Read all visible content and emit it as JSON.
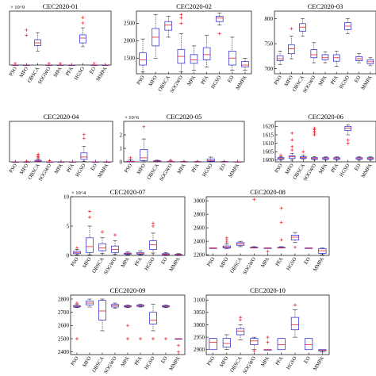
{
  "chart_data": [
    {
      "type": "box",
      "title": "CEC2020-01",
      "categories": [
        "PSO",
        "MFO",
        "OBSCA",
        "SOGWO",
        "MPA",
        "PFA",
        "HGSO",
        "EO",
        "MMPA"
      ],
      "y_multiplier": "× 10^9",
      "ylim": [
        0,
        10
      ],
      "yticks": [],
      "boxes": [
        {
          "q1": 0,
          "med": 0,
          "q3": 0,
          "lo": 0,
          "hi": 0,
          "outliers": [
            0.3
          ]
        },
        {
          "q1": 0,
          "med": 0,
          "q3": 0,
          "lo": 0,
          "hi": 0,
          "outliers": [
            6.5,
            5.5
          ]
        },
        {
          "q1": 3.6,
          "med": 4.1,
          "q3": 4.7,
          "lo": 2.6,
          "hi": 6.0,
          "outliers": []
        },
        {
          "q1": 0,
          "med": 0,
          "q3": 0,
          "lo": 0,
          "hi": 0,
          "outliers": [
            0.3
          ]
        },
        {
          "q1": 0,
          "med": 0,
          "q3": 0,
          "lo": 0,
          "hi": 0,
          "outliers": [
            0.3
          ]
        },
        {
          "q1": 0,
          "med": 0,
          "q3": 0,
          "lo": 0,
          "hi": 0,
          "outliers": []
        },
        {
          "q1": 4.1,
          "med": 5.0,
          "q3": 5.6,
          "lo": 3.4,
          "hi": 6.9,
          "outliers": [
            7.8,
            8.8
          ]
        },
        {
          "q1": 0,
          "med": 0,
          "q3": 0,
          "lo": 0,
          "hi": 0,
          "outliers": [
            0.3
          ]
        },
        {
          "q1": 0,
          "med": 0,
          "q3": 0,
          "lo": 0,
          "hi": 0,
          "outliers": []
        }
      ]
    },
    {
      "type": "box",
      "title": "CEC2020-02",
      "categories": [
        "PSO",
        "MFO",
        "OBSCA",
        "SOGWO",
        "MPA",
        "PFA",
        "HGSO",
        "EO",
        "MMPA"
      ],
      "y_multiplier": "",
      "ylim": [
        1050,
        2850
      ],
      "yticks": [
        1500,
        2000,
        2500
      ],
      "boxes": [
        {
          "q1": 1300,
          "med": 1450,
          "q3": 1650,
          "lo": 1100,
          "hi": 2050,
          "outliers": []
        },
        {
          "q1": 1850,
          "med": 2100,
          "q3": 2350,
          "lo": 1500,
          "hi": 2750,
          "outliers": []
        },
        {
          "q1": 2300,
          "med": 2450,
          "q3": 2550,
          "lo": 2100,
          "hi": 2700,
          "outliers": []
        },
        {
          "q1": 1350,
          "med": 1550,
          "q3": 1750,
          "lo": 1100,
          "hi": 2200,
          "outliers": [
            2500,
            2650,
            2750
          ]
        },
        {
          "q1": 1350,
          "med": 1450,
          "q3": 1600,
          "lo": 1150,
          "hi": 1850,
          "outliers": []
        },
        {
          "q1": 1450,
          "med": 1600,
          "q3": 1800,
          "lo": 1250,
          "hi": 2150,
          "outliers": []
        },
        {
          "q1": 2550,
          "med": 2650,
          "q3": 2700,
          "lo": 2450,
          "hi": 2800,
          "outliers": [
            2200
          ]
        },
        {
          "q1": 1300,
          "med": 1500,
          "q3": 1700,
          "lo": 1150,
          "hi": 2100,
          "outliers": []
        },
        {
          "q1": 1250,
          "med": 1300,
          "q3": 1400,
          "lo": 1150,
          "hi": 1500,
          "outliers": []
        }
      ]
    },
    {
      "type": "box",
      "title": "CEC2020-03",
      "categories": [
        "PSO",
        "MFO",
        "OBSCA",
        "SOGWO",
        "MPA",
        "PFA",
        "HGSO",
        "EO",
        "MMPA"
      ],
      "y_multiplier": "",
      "ylim": [
        690,
        815
      ],
      "yticks": [
        700,
        750,
        800
      ],
      "boxes": [
        {
          "q1": 716,
          "med": 720,
          "q3": 726,
          "lo": 708,
          "hi": 735,
          "outliers": []
        },
        {
          "q1": 730,
          "med": 740,
          "q3": 748,
          "lo": 720,
          "hi": 765,
          "outliers": [
            780
          ]
        },
        {
          "q1": 775,
          "med": 783,
          "q3": 790,
          "lo": 765,
          "hi": 800,
          "outliers": []
        },
        {
          "q1": 722,
          "med": 728,
          "q3": 738,
          "lo": 712,
          "hi": 752,
          "outliers": []
        },
        {
          "q1": 718,
          "med": 722,
          "q3": 728,
          "lo": 712,
          "hi": 734,
          "outliers": []
        },
        {
          "q1": 715,
          "med": 722,
          "q3": 728,
          "lo": 705,
          "hi": 735,
          "outliers": []
        },
        {
          "q1": 778,
          "med": 785,
          "q3": 792,
          "lo": 770,
          "hi": 800,
          "outliers": []
        },
        {
          "q1": 716,
          "med": 720,
          "q3": 724,
          "lo": 712,
          "hi": 730,
          "outliers": []
        },
        {
          "q1": 710,
          "med": 714,
          "q3": 718,
          "lo": 706,
          "hi": 722,
          "outliers": []
        }
      ]
    },
    {
      "type": "box",
      "title": "CEC2020-04",
      "categories": [
        "PSO",
        "MFO",
        "OBSCA",
        "SOGWO",
        "MPA",
        "PFA",
        "HGSO",
        "EO",
        "MMPA"
      ],
      "y_multiplier": "",
      "ylim": [
        0,
        10
      ],
      "yticks": [],
      "boxes": [
        {
          "q1": 0,
          "med": 0,
          "q3": 0,
          "lo": 0,
          "hi": 0,
          "outliers": []
        },
        {
          "q1": 0,
          "med": 0,
          "q3": 0,
          "lo": 0,
          "hi": 0,
          "outliers": [
            0.2
          ]
        },
        {
          "q1": 0.1,
          "med": 0.2,
          "q3": 0.4,
          "lo": 0,
          "hi": 0.7,
          "outliers": [
            1.0,
            1.3,
            1.6,
            1.9
          ]
        },
        {
          "q1": 0,
          "med": 0,
          "q3": 0,
          "lo": 0,
          "hi": 0,
          "outliers": [
            0.3
          ]
        },
        {
          "q1": 0,
          "med": 0,
          "q3": 0,
          "lo": 0,
          "hi": 0,
          "outliers": []
        },
        {
          "q1": 0,
          "med": 0,
          "q3": 0,
          "lo": 0,
          "hi": 0,
          "outliers": []
        },
        {
          "q1": 0.6,
          "med": 1.2,
          "q3": 2.2,
          "lo": 0.1,
          "hi": 3.8,
          "outliers": [
            5.8,
            6.8
          ]
        },
        {
          "q1": 0,
          "med": 0,
          "q3": 0,
          "lo": 0,
          "hi": 0,
          "outliers": []
        },
        {
          "q1": 0,
          "med": 0,
          "q3": 0,
          "lo": 0,
          "hi": 0,
          "outliers": []
        }
      ]
    },
    {
      "type": "box",
      "title": "CEC2020-05",
      "categories": [
        "PSO",
        "MFO",
        "OBSCA",
        "SOGWO",
        "MPA",
        "PFA",
        "HGSO",
        "EO",
        "MMPA"
      ],
      "y_multiplier": "× 10^6",
      "ylim": [
        0,
        3
      ],
      "yticks": [
        0,
        1,
        2
      ],
      "boxes": [
        {
          "q1": 0,
          "med": 0.02,
          "q3": 0.05,
          "lo": 0,
          "hi": 0.15,
          "outliers": [
            0.3
          ]
        },
        {
          "q1": 0.1,
          "med": 0.3,
          "q3": 0.9,
          "lo": 0,
          "hi": 1.7,
          "outliers": [
            2.6
          ]
        },
        {
          "q1": 0.03,
          "med": 0.05,
          "q3": 0.08,
          "lo": 0,
          "hi": 0.12,
          "outliers": []
        },
        {
          "q1": 0,
          "med": 0.01,
          "q3": 0.03,
          "lo": 0,
          "hi": 0.06,
          "outliers": [
            0.12
          ]
        },
        {
          "q1": 0,
          "med": 0.01,
          "q3": 0.02,
          "lo": 0,
          "hi": 0.04,
          "outliers": []
        },
        {
          "q1": 0,
          "med": 0.01,
          "q3": 0.02,
          "lo": 0,
          "hi": 0.04,
          "outliers": []
        },
        {
          "q1": 0.04,
          "med": 0.1,
          "q3": 0.2,
          "lo": 0,
          "hi": 0.35,
          "outliers": []
        },
        {
          "q1": 0,
          "med": 0.01,
          "q3": 0.02,
          "lo": 0,
          "hi": 0.04,
          "outliers": []
        },
        {
          "q1": 0,
          "med": 0.005,
          "q3": 0.01,
          "lo": 0,
          "hi": 0.02,
          "outliers": []
        }
      ]
    },
    {
      "type": "box",
      "title": "CEC2020-06",
      "categories": [
        "PSO",
        "MFO",
        "OBSCA",
        "SOGWO",
        "MPA",
        "PFA",
        "HGSO",
        "EO",
        "MMPA"
      ],
      "y_multiplier": "",
      "ylim": [
        1599,
        1623
      ],
      "yticks": [
        1600,
        1605,
        1610,
        1615,
        1620
      ],
      "boxes": [
        {
          "q1": 1600.5,
          "med": 1601,
          "q3": 1601.5,
          "lo": 1600,
          "hi": 1602,
          "outliers": [
            1603
          ]
        },
        {
          "q1": 1601,
          "med": 1602,
          "q3": 1602.5,
          "lo": 1600,
          "hi": 1604,
          "outliers": [
            1606,
            1608,
            1612,
            1616
          ]
        },
        {
          "q1": 1601,
          "med": 1601.5,
          "q3": 1602,
          "lo": 1600.5,
          "hi": 1603,
          "outliers": [
            1605
          ]
        },
        {
          "q1": 1600.5,
          "med": 1601,
          "q3": 1601.5,
          "lo": 1600,
          "hi": 1602,
          "outliers": [
            1615,
            1616,
            1617,
            1618,
            1619
          ]
        },
        {
          "q1": 1600.5,
          "med": 1601,
          "q3": 1601.5,
          "lo": 1600,
          "hi": 1602,
          "outliers": []
        },
        {
          "q1": 1600.5,
          "med": 1601,
          "q3": 1601.5,
          "lo": 1600,
          "hi": 1602,
          "outliers": []
        },
        {
          "q1": 1617.5,
          "med": 1619,
          "q3": 1620,
          "lo": 1615,
          "hi": 1621,
          "outliers": [
            1612,
            1610
          ]
        },
        {
          "q1": 1600.5,
          "med": 1601,
          "q3": 1601.5,
          "lo": 1600,
          "hi": 1602,
          "outliers": []
        },
        {
          "q1": 1600.5,
          "med": 1601,
          "q3": 1601.5,
          "lo": 1600,
          "hi": 1602,
          "outliers": []
        }
      ]
    },
    {
      "type": "box",
      "title": "CEC2020-07",
      "categories": [
        "PSO",
        "MFO",
        "OBSCA",
        "SOGWO",
        "MPA",
        "PFA",
        "HGSO",
        "EO",
        "MMPA"
      ],
      "y_multiplier": "× 10^4",
      "ylim": [
        0,
        10
      ],
      "yticks": [
        0,
        5,
        10
      ],
      "boxes": [
        {
          "q1": 0.3,
          "med": 0.5,
          "q3": 0.7,
          "lo": 0.1,
          "hi": 1.0,
          "outliers": [
            1.3
          ]
        },
        {
          "q1": 0.5,
          "med": 1.5,
          "q3": 3.0,
          "lo": 0.1,
          "hi": 5.0,
          "outliers": [
            7.5,
            6.5
          ]
        },
        {
          "q1": 0.8,
          "med": 1.3,
          "q3": 2.0,
          "lo": 0.3,
          "hi": 3.0,
          "outliers": [
            4.0
          ]
        },
        {
          "q1": 0.5,
          "med": 1.0,
          "q3": 1.6,
          "lo": 0.2,
          "hi": 2.5,
          "outliers": [
            3.5
          ]
        },
        {
          "q1": 0.2,
          "med": 0.3,
          "q3": 0.4,
          "lo": 0.1,
          "hi": 0.6,
          "outliers": []
        },
        {
          "q1": 0.2,
          "med": 0.3,
          "q3": 0.5,
          "lo": 0.1,
          "hi": 0.8,
          "outliers": []
        },
        {
          "q1": 1.0,
          "med": 1.8,
          "q3": 2.5,
          "lo": 0.4,
          "hi": 3.8,
          "outliers": [
            5.0,
            5.5
          ]
        },
        {
          "q1": 0.1,
          "med": 0.2,
          "q3": 0.3,
          "lo": 0,
          "hi": 0.5,
          "outliers": []
        },
        {
          "q1": 0.1,
          "med": 0.15,
          "q3": 0.2,
          "lo": 0,
          "hi": 0.3,
          "outliers": []
        }
      ]
    },
    {
      "type": "box",
      "title": "CEC2020-08",
      "categories": [
        "PSO",
        "MFO",
        "OBSCA",
        "SOGWO",
        "MPA",
        "PFA",
        "HGSO",
        "EO",
        "MMPA"
      ],
      "y_multiplier": "",
      "ylim": [
        2190,
        3060
      ],
      "yticks": [
        2200,
        2400,
        2600,
        2800,
        3000
      ],
      "boxes": [
        {
          "q1": 2300,
          "med": 2300,
          "q3": 2300,
          "lo": 2300,
          "hi": 2300,
          "outliers": []
        },
        {
          "q1": 2300,
          "med": 2310,
          "q3": 2330,
          "lo": 2290,
          "hi": 2360,
          "outliers": [
            2420,
            2450,
            2390
          ]
        },
        {
          "q1": 2340,
          "med": 2360,
          "q3": 2380,
          "lo": 2320,
          "hi": 2400,
          "outliers": []
        },
        {
          "q1": 2300,
          "med": 2305,
          "q3": 2310,
          "lo": 2300,
          "hi": 2320,
          "outliers": [
            3020
          ]
        },
        {
          "q1": 2300,
          "med": 2300,
          "q3": 2300,
          "lo": 2300,
          "hi": 2300,
          "outliers": [
            2250
          ]
        },
        {
          "q1": 2300,
          "med": 2300,
          "q3": 2310,
          "lo": 2300,
          "hi": 2320,
          "outliers": [
            2680,
            2890,
            2420
          ]
        },
        {
          "q1": 2420,
          "med": 2460,
          "q3": 2490,
          "lo": 2380,
          "hi": 2530,
          "outliers": [
            2310
          ]
        },
        {
          "q1": 2300,
          "med": 2300,
          "q3": 2300,
          "lo": 2300,
          "hi": 2300,
          "outliers": []
        },
        {
          "q1": 2220,
          "med": 2260,
          "q3": 2290,
          "lo": 2200,
          "hi": 2300,
          "outliers": []
        }
      ]
    },
    {
      "type": "box",
      "title": "CEC2020-09",
      "categories": [
        "PSO",
        "MFO",
        "OBSCA",
        "SOGWO",
        "MPA",
        "PFA",
        "HGSO",
        "EO",
        "MMPA"
      ],
      "y_multiplier": "",
      "ylim": [
        2380,
        2830
      ],
      "yticks": [
        2400,
        2500,
        2600,
        2700,
        2800
      ],
      "boxes": [
        {
          "q1": 2740,
          "med": 2745,
          "q3": 2750,
          "lo": 2735,
          "hi": 2760,
          "outliers": [
            2500,
            2770
          ]
        },
        {
          "q1": 2755,
          "med": 2770,
          "q3": 2785,
          "lo": 2740,
          "hi": 2800,
          "outliers": []
        },
        {
          "q1": 2640,
          "med": 2710,
          "q3": 2790,
          "lo": 2560,
          "hi": 2800,
          "outliers": []
        },
        {
          "q1": 2740,
          "med": 2750,
          "q3": 2760,
          "lo": 2730,
          "hi": 2770,
          "outliers": []
        },
        {
          "q1": 2740,
          "med": 2745,
          "q3": 2750,
          "lo": 2735,
          "hi": 2755,
          "outliers": [
            2500,
            2600
          ]
        },
        {
          "q1": 2745,
          "med": 2750,
          "q3": 2755,
          "lo": 2740,
          "hi": 2760,
          "outliers": [
            2500
          ]
        },
        {
          "q1": 2610,
          "med": 2640,
          "q3": 2700,
          "lo": 2560,
          "hi": 2760,
          "outliers": [
            2500
          ]
        },
        {
          "q1": 2740,
          "med": 2745,
          "q3": 2750,
          "lo": 2735,
          "hi": 2755,
          "outliers": [
            2500
          ]
        },
        {
          "q1": 2500,
          "med": 2500,
          "q3": 2500,
          "lo": 2500,
          "hi": 2500,
          "outliers": [
            2400,
            2450
          ]
        }
      ]
    },
    {
      "type": "box",
      "title": "CEC2020-10",
      "categories": [
        "PSO",
        "MFO",
        "OBSCA",
        "SOGWO",
        "MPA",
        "PFA",
        "HGSO",
        "EO",
        "MMPA"
      ],
      "y_multiplier": "",
      "ylim": [
        2880,
        3120
      ],
      "yticks": [
        2900,
        2950,
        3000,
        3050,
        3100
      ],
      "boxes": [
        {
          "q1": 2900,
          "med": 2930,
          "q3": 2945,
          "lo": 2900,
          "hi": 2945,
          "outliers": []
        },
        {
          "q1": 2910,
          "med": 2925,
          "q3": 2945,
          "lo": 2900,
          "hi": 2960,
          "outliers": []
        },
        {
          "q1": 2960,
          "med": 2975,
          "q3": 2985,
          "lo": 2940,
          "hi": 3000,
          "outliers": [
            3020,
            3030
          ]
        },
        {
          "q1": 2920,
          "med": 2935,
          "q3": 2945,
          "lo": 2900,
          "hi": 2950,
          "outliers": [
            2895
          ]
        },
        {
          "q1": 2900,
          "med": 2900,
          "q3": 2900,
          "lo": 2900,
          "hi": 2900,
          "outliers": [
            2930,
            2950
          ]
        },
        {
          "q1": 2900,
          "med": 2920,
          "q3": 2945,
          "lo": 2900,
          "hi": 2945,
          "outliers": []
        },
        {
          "q1": 2980,
          "med": 3000,
          "q3": 3030,
          "lo": 2950,
          "hi": 3060,
          "outliers": [
            3080
          ]
        },
        {
          "q1": 2900,
          "med": 2920,
          "q3": 2945,
          "lo": 2900,
          "hi": 2945,
          "outliers": []
        },
        {
          "q1": 2895,
          "med": 2897,
          "q3": 2900,
          "lo": 2890,
          "hi": 2900,
          "outliers": []
        }
      ]
    }
  ],
  "colors": {
    "box": "#1f1fd6",
    "median": "#e8202a",
    "whisker": "#000000",
    "outlier": "#e8202a",
    "axis": "#000000"
  }
}
